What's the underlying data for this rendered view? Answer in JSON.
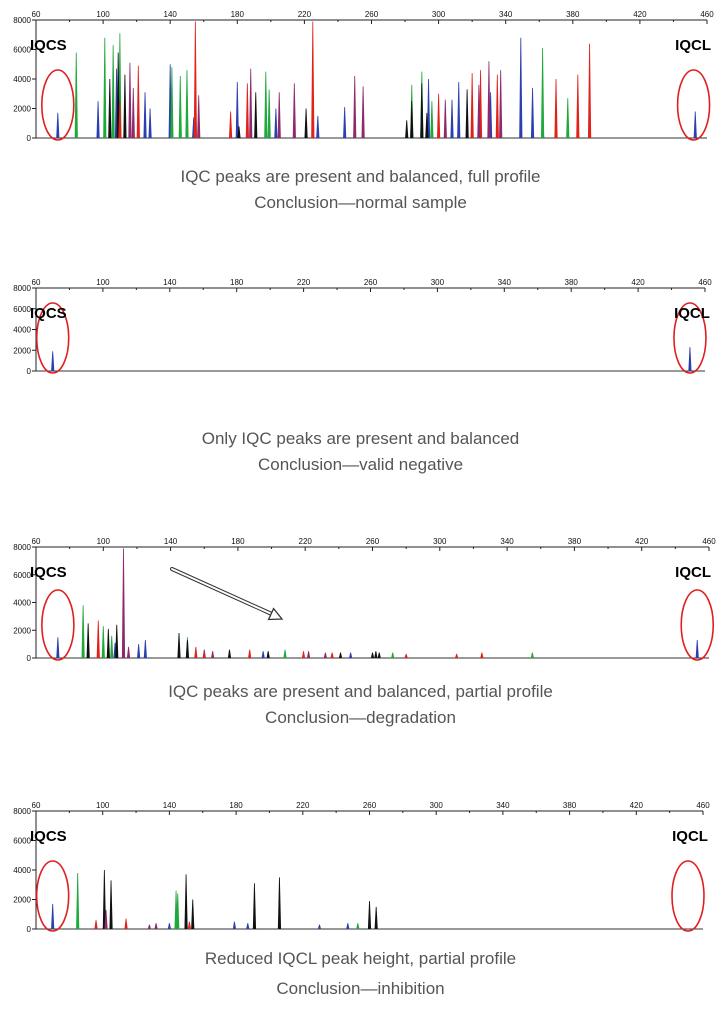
{
  "chart_data": [
    {
      "type": "bar",
      "x_ticks": [
        60,
        100,
        140,
        180,
        220,
        260,
        300,
        340,
        380,
        420,
        460
      ],
      "y_ticks": [
        0,
        2000,
        4000,
        6000,
        8000
      ],
      "xlim": [
        60,
        460
      ],
      "ylim": [
        0,
        8000
      ],
      "markers": [
        {
          "label": "IQCS",
          "x": 73
        },
        {
          "label": "IQCL",
          "x": 452
        }
      ],
      "caption": [
        "IQC peaks are present and balanced, full profile",
        "Conclusion—normal sample"
      ],
      "series": [
        {
          "color": "#2b3fb0",
          "peaks": [
            [
              73,
              1700
            ],
            [
              97,
              2500
            ],
            [
              108,
              4700
            ],
            [
              125,
              3100
            ],
            [
              128,
              2000
            ],
            [
              140,
              5000
            ],
            [
              154,
              1400
            ],
            [
              180,
              3800
            ],
            [
              203,
              2000
            ],
            [
              228,
              1500
            ],
            [
              244,
              2100
            ],
            [
              294,
              4000
            ],
            [
              308,
              2600
            ],
            [
              312,
              3800
            ],
            [
              331,
              3100
            ],
            [
              349,
              6800
            ],
            [
              356,
              3400
            ],
            [
              362,
              1500
            ],
            [
              453,
              1800
            ]
          ]
        },
        {
          "color": "#1fa83b",
          "peaks": [
            [
              84,
              5800
            ],
            [
              101,
              6800
            ],
            [
              106,
              6300
            ],
            [
              110,
              7100
            ],
            [
              141,
              4800
            ],
            [
              146,
              4200
            ],
            [
              150,
              4600
            ],
            [
              155,
              3300
            ],
            [
              197,
              4500
            ],
            [
              199,
              3300
            ],
            [
              284,
              3600
            ],
            [
              290,
              4500
            ],
            [
              296,
              2500
            ],
            [
              362,
              6100
            ],
            [
              377,
              2700
            ]
          ]
        },
        {
          "color": "#111111",
          "peaks": [
            [
              104,
              4000
            ],
            [
              109,
              5800
            ],
            [
              113,
              4300
            ],
            [
              181,
              800
            ],
            [
              191,
              3100
            ],
            [
              221,
              2000
            ],
            [
              281,
              1200
            ],
            [
              284,
              2500
            ],
            [
              290,
              3700
            ],
            [
              293,
              1700
            ],
            [
              317,
              3300
            ]
          ]
        },
        {
          "color": "#e0221b",
          "peaks": [
            [
              110,
              2500
            ],
            [
              121,
              4900
            ],
            [
              155,
              7900
            ],
            [
              176,
              1800
            ],
            [
              186,
              3700
            ],
            [
              225,
              7900
            ],
            [
              300,
              3000
            ],
            [
              320,
              4400
            ],
            [
              325,
              4600
            ],
            [
              335,
              4300
            ],
            [
              370,
              4000
            ],
            [
              383,
              4300
            ],
            [
              390,
              6400
            ]
          ]
        },
        {
          "color": "#8e2a6c",
          "peaks": [
            [
              116,
              5100
            ],
            [
              118,
              3400
            ],
            [
              157,
              2900
            ],
            [
              188,
              4700
            ],
            [
              205,
              3100
            ],
            [
              214,
              3700
            ],
            [
              250,
              4200
            ],
            [
              255,
              3500
            ],
            [
              304,
              2600
            ],
            [
              324,
              3600
            ],
            [
              330,
              5200
            ],
            [
              337,
              4600
            ]
          ]
        }
      ]
    },
    {
      "type": "bar",
      "x_ticks": [
        60,
        100,
        140,
        180,
        220,
        260,
        300,
        340,
        380,
        420,
        460
      ],
      "y_ticks": [
        0,
        2000,
        4000,
        6000,
        8000
      ],
      "xlim": [
        60,
        460
      ],
      "ylim": [
        0,
        8000
      ],
      "markers": [
        {
          "label": "IQCS",
          "x": 70
        },
        {
          "label": "IQCL",
          "x": 451
        }
      ],
      "caption": [
        "Only IQC peaks are present and balanced",
        "Conclusion—valid negative"
      ],
      "series": [
        {
          "color": "#2b3fb0",
          "peaks": [
            [
              70,
              1900
            ],
            [
              451,
              2300
            ]
          ]
        }
      ]
    },
    {
      "type": "bar",
      "x_ticks": [
        60,
        100,
        140,
        180,
        220,
        260,
        300,
        340,
        380,
        420,
        460
      ],
      "y_ticks": [
        0,
        2000,
        4000,
        6000,
        8000
      ],
      "xlim": [
        60,
        460
      ],
      "ylim": [
        0,
        8000
      ],
      "markers": [
        {
          "label": "IQCS",
          "x": 73
        },
        {
          "label": "IQCL",
          "x": 453
        }
      ],
      "caption": [
        "IQC peaks are present and balanced, partial profile",
        "Conclusion—degradation"
      ],
      "series": [
        {
          "color": "#2b3fb0",
          "peaks": [
            [
              73,
              1500
            ],
            [
              107,
              1100
            ],
            [
              121,
              1000
            ],
            [
              125,
              1300
            ],
            [
              160,
              600
            ],
            [
              195,
              500
            ],
            [
              247,
              400
            ],
            [
              453,
              1300
            ]
          ]
        },
        {
          "color": "#1fa83b",
          "peaks": [
            [
              88,
              3800
            ],
            [
              100,
              2300
            ],
            [
              105,
              1600
            ],
            [
              150,
              1500
            ],
            [
              208,
              600
            ],
            [
              272,
              400
            ],
            [
              355,
              400
            ]
          ]
        },
        {
          "color": "#111111",
          "peaks": [
            [
              91,
              2500
            ],
            [
              103,
              2100
            ],
            [
              108,
              2400
            ],
            [
              145,
              1800
            ],
            [
              150,
              1300
            ],
            [
              175,
              600
            ],
            [
              198,
              500
            ],
            [
              241,
              400
            ],
            [
              260,
              400
            ],
            [
              262,
              500
            ],
            [
              264,
              400
            ]
          ]
        },
        {
          "color": "#e0221b",
          "peaks": [
            [
              97,
              2700
            ],
            [
              155,
              800
            ],
            [
              160,
              500
            ],
            [
              187,
              600
            ],
            [
              219,
              500
            ],
            [
              236,
              400
            ],
            [
              280,
              300
            ],
            [
              310,
              300
            ],
            [
              325,
              400
            ]
          ]
        },
        {
          "color": "#8e2a6c",
          "peaks": [
            [
              112,
              7900
            ],
            [
              115,
              800
            ],
            [
              165,
              500
            ],
            [
              222,
              500
            ],
            [
              232,
              400
            ]
          ]
        }
      ]
    },
    {
      "type": "bar",
      "x_ticks": [
        60,
        100,
        140,
        180,
        220,
        260,
        300,
        340,
        380,
        420,
        460
      ],
      "y_ticks": [
        0,
        2000,
        4000,
        6000,
        8000
      ],
      "xlim": [
        60,
        460
      ],
      "ylim": [
        0,
        8000
      ],
      "markers": [
        {
          "label": "IQCS",
          "x": 70
        },
        {
          "label": "IQCL",
          "x": 451
        }
      ],
      "caption": [
        "Reduced IQCL peak height, partial profile",
        "Conclusion—inhibition"
      ],
      "series": [
        {
          "color": "#2b3fb0",
          "peaks": [
            [
              70,
              1700
            ],
            [
              140,
              400
            ],
            [
              179,
              500
            ],
            [
              187,
              400
            ],
            [
              230,
              300
            ],
            [
              247,
              400
            ]
          ]
        },
        {
          "color": "#1fa83b",
          "peaks": [
            [
              85,
              3800
            ],
            [
              144,
              2600
            ],
            [
              145,
              2400
            ],
            [
              150,
              1900
            ],
            [
              253,
              400
            ]
          ]
        },
        {
          "color": "#111111",
          "peaks": [
            [
              101,
              4000
            ],
            [
              105,
              3300
            ],
            [
              150,
              3700
            ],
            [
              154,
              2000
            ],
            [
              191,
              3100
            ],
            [
              206,
              3500
            ],
            [
              260,
              1900
            ],
            [
              264,
              1500
            ]
          ]
        },
        {
          "color": "#e0221b",
          "peaks": [
            [
              96,
              600
            ],
            [
              114,
              700
            ],
            [
              152,
              500
            ]
          ]
        },
        {
          "color": "#8e2a6c",
          "peaks": [
            [
              102,
              1300
            ],
            [
              128,
              300
            ],
            [
              132,
              400
            ]
          ]
        }
      ]
    }
  ]
}
